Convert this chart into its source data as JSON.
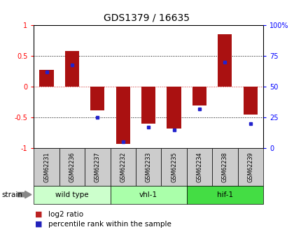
{
  "title": "GDS1379 / 16635",
  "samples": [
    "GSM62231",
    "GSM62236",
    "GSM62237",
    "GSM62232",
    "GSM62233",
    "GSM62235",
    "GSM62234",
    "GSM62238",
    "GSM62239"
  ],
  "log2_ratios": [
    0.27,
    0.58,
    -0.38,
    -0.93,
    -0.6,
    -0.68,
    -0.3,
    0.85,
    -0.45
  ],
  "percentile_ranks": [
    62,
    68,
    25,
    5,
    17,
    15,
    32,
    70,
    20
  ],
  "groups": [
    {
      "label": "wild type",
      "count": 3,
      "color": "#ccffcc"
    },
    {
      "label": "vhl-1",
      "count": 3,
      "color": "#aaffaa"
    },
    {
      "label": "hif-1",
      "count": 3,
      "color": "#44dd44"
    }
  ],
  "ylim": [
    -1,
    1
  ],
  "yticks_left": [
    -1,
    -0.5,
    0,
    0.5,
    1
  ],
  "yticks_right": [
    0,
    25,
    50,
    75,
    100
  ],
  "bar_color": "#aa1111",
  "dot_color": "#2222cc",
  "zero_line_color": "#cc2222",
  "hline_color": "#000000",
  "bg_color": "#ffffff",
  "sample_box_color": "#cccccc",
  "legend_bar_color": "#bb2222",
  "legend_dot_color": "#2222bb"
}
